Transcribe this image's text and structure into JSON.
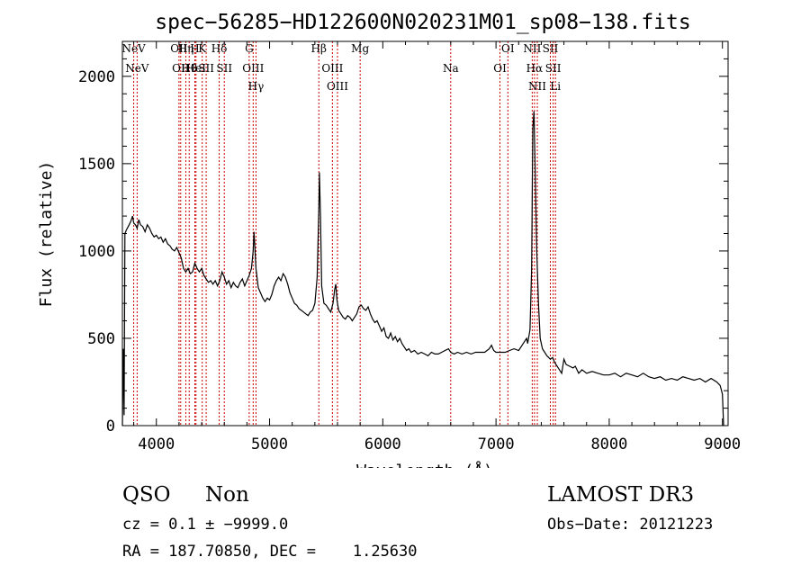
{
  "chart_data": {
    "type": "line",
    "title": "spec−56285−HD122600N020231M01_sp08−138.fits",
    "xlabel": "Wavelength (Å)",
    "ylabel": "Flux (relative)",
    "xlim": [
      3700,
      9050
    ],
    "ylim": [
      0,
      2200
    ],
    "xticks": [
      4000,
      5000,
      6000,
      7000,
      8000,
      9000
    ],
    "yticks": [
      0,
      500,
      1000,
      1500,
      2000
    ],
    "grid": false,
    "series": [
      {
        "color": "#000000",
        "points": [
          [
            3700,
            0
          ],
          [
            3708,
            440
          ],
          [
            3715,
            60
          ],
          [
            3722,
            1100
          ],
          [
            3735,
            1120
          ],
          [
            3760,
            1150
          ],
          [
            3775,
            1170
          ],
          [
            3790,
            1200
          ],
          [
            3800,
            1160
          ],
          [
            3815,
            1150
          ],
          [
            3830,
            1130
          ],
          [
            3845,
            1180
          ],
          [
            3860,
            1150
          ],
          [
            3880,
            1140
          ],
          [
            3900,
            1110
          ],
          [
            3920,
            1150
          ],
          [
            3940,
            1130
          ],
          [
            3960,
            1100
          ],
          [
            3980,
            1080
          ],
          [
            4000,
            1090
          ],
          [
            4020,
            1070
          ],
          [
            4040,
            1080
          ],
          [
            4060,
            1050
          ],
          [
            4080,
            1070
          ],
          [
            4100,
            1040
          ],
          [
            4120,
            1030
          ],
          [
            4140,
            1010
          ],
          [
            4160,
            1000
          ],
          [
            4180,
            1020
          ],
          [
            4200,
            990
          ],
          [
            4220,
            960
          ],
          [
            4240,
            900
          ],
          [
            4260,
            880
          ],
          [
            4280,
            900
          ],
          [
            4300,
            870
          ],
          [
            4320,
            880
          ],
          [
            4340,
            930
          ],
          [
            4360,
            900
          ],
          [
            4380,
            880
          ],
          [
            4400,
            900
          ],
          [
            4420,
            860
          ],
          [
            4440,
            840
          ],
          [
            4460,
            820
          ],
          [
            4480,
            830
          ],
          [
            4500,
            810
          ],
          [
            4520,
            830
          ],
          [
            4540,
            800
          ],
          [
            4560,
            830
          ],
          [
            4580,
            880
          ],
          [
            4600,
            850
          ],
          [
            4620,
            810
          ],
          [
            4640,
            830
          ],
          [
            4660,
            790
          ],
          [
            4680,
            820
          ],
          [
            4700,
            800
          ],
          [
            4720,
            790
          ],
          [
            4740,
            820
          ],
          [
            4760,
            840
          ],
          [
            4780,
            800
          ],
          [
            4800,
            830
          ],
          [
            4820,
            860
          ],
          [
            4840,
            900
          ],
          [
            4855,
            1000
          ],
          [
            4862,
            1110
          ],
          [
            4870,
            1020
          ],
          [
            4880,
            900
          ],
          [
            4900,
            790
          ],
          [
            4920,
            760
          ],
          [
            4940,
            730
          ],
          [
            4960,
            710
          ],
          [
            4980,
            730
          ],
          [
            5000,
            720
          ],
          [
            5020,
            750
          ],
          [
            5040,
            800
          ],
          [
            5060,
            830
          ],
          [
            5080,
            850
          ],
          [
            5100,
            830
          ],
          [
            5120,
            870
          ],
          [
            5140,
            850
          ],
          [
            5160,
            810
          ],
          [
            5180,
            760
          ],
          [
            5200,
            730
          ],
          [
            5220,
            700
          ],
          [
            5240,
            690
          ],
          [
            5260,
            670
          ],
          [
            5280,
            660
          ],
          [
            5300,
            650
          ],
          [
            5320,
            640
          ],
          [
            5340,
            630
          ],
          [
            5360,
            650
          ],
          [
            5380,
            660
          ],
          [
            5400,
            700
          ],
          [
            5420,
            850
          ],
          [
            5435,
            1250
          ],
          [
            5440,
            1450
          ],
          [
            5450,
            1200
          ],
          [
            5460,
            800
          ],
          [
            5480,
            700
          ],
          [
            5500,
            690
          ],
          [
            5520,
            670
          ],
          [
            5540,
            650
          ],
          [
            5560,
            700
          ],
          [
            5575,
            780
          ],
          [
            5585,
            810
          ],
          [
            5595,
            720
          ],
          [
            5610,
            660
          ],
          [
            5630,
            640
          ],
          [
            5650,
            620
          ],
          [
            5670,
            610
          ],
          [
            5690,
            630
          ],
          [
            5710,
            620
          ],
          [
            5730,
            600
          ],
          [
            5750,
            620
          ],
          [
            5770,
            640
          ],
          [
            5790,
            680
          ],
          [
            5810,
            690
          ],
          [
            5830,
            670
          ],
          [
            5850,
            660
          ],
          [
            5870,
            680
          ],
          [
            5890,
            640
          ],
          [
            5910,
            610
          ],
          [
            5930,
            590
          ],
          [
            5950,
            600
          ],
          [
            5970,
            570
          ],
          [
            5990,
            540
          ],
          [
            6010,
            560
          ],
          [
            6030,
            510
          ],
          [
            6050,
            500
          ],
          [
            6070,
            530
          ],
          [
            6090,
            490
          ],
          [
            6110,
            510
          ],
          [
            6130,
            480
          ],
          [
            6150,
            500
          ],
          [
            6170,
            470
          ],
          [
            6190,
            450
          ],
          [
            6210,
            430
          ],
          [
            6230,
            440
          ],
          [
            6250,
            420
          ],
          [
            6280,
            430
          ],
          [
            6310,
            410
          ],
          [
            6340,
            420
          ],
          [
            6370,
            410
          ],
          [
            6400,
            400
          ],
          [
            6430,
            420
          ],
          [
            6460,
            410
          ],
          [
            6490,
            410
          ],
          [
            6520,
            420
          ],
          [
            6550,
            430
          ],
          [
            6580,
            440
          ],
          [
            6600,
            420
          ],
          [
            6630,
            410
          ],
          [
            6660,
            420
          ],
          [
            6700,
            410
          ],
          [
            6740,
            420
          ],
          [
            6780,
            410
          ],
          [
            6820,
            420
          ],
          [
            6860,
            420
          ],
          [
            6900,
            420
          ],
          [
            6940,
            440
          ],
          [
            6960,
            460
          ],
          [
            6980,
            430
          ],
          [
            7000,
            420
          ],
          [
            7040,
            420
          ],
          [
            7080,
            420
          ],
          [
            7120,
            430
          ],
          [
            7160,
            440
          ],
          [
            7200,
            430
          ],
          [
            7230,
            460
          ],
          [
            7250,
            480
          ],
          [
            7270,
            500
          ],
          [
            7280,
            470
          ],
          [
            7300,
            550
          ],
          [
            7315,
            900
          ],
          [
            7325,
            1700
          ],
          [
            7335,
            1800
          ],
          [
            7345,
            1500
          ],
          [
            7360,
            1000
          ],
          [
            7375,
            700
          ],
          [
            7390,
            500
          ],
          [
            7410,
            440
          ],
          [
            7430,
            420
          ],
          [
            7450,
            400
          ],
          [
            7480,
            380
          ],
          [
            7500,
            390
          ],
          [
            7520,
            360
          ],
          [
            7550,
            330
          ],
          [
            7580,
            300
          ],
          [
            7600,
            380
          ],
          [
            7620,
            350
          ],
          [
            7650,
            340
          ],
          [
            7680,
            330
          ],
          [
            7700,
            340
          ],
          [
            7730,
            300
          ],
          [
            7760,
            320
          ],
          [
            7800,
            300
          ],
          [
            7850,
            310
          ],
          [
            7900,
            300
          ],
          [
            7950,
            290
          ],
          [
            8000,
            290
          ],
          [
            8050,
            300
          ],
          [
            8100,
            280
          ],
          [
            8150,
            300
          ],
          [
            8200,
            290
          ],
          [
            8250,
            280
          ],
          [
            8300,
            300
          ],
          [
            8350,
            280
          ],
          [
            8400,
            270
          ],
          [
            8450,
            280
          ],
          [
            8500,
            260
          ],
          [
            8550,
            270
          ],
          [
            8600,
            260
          ],
          [
            8650,
            280
          ],
          [
            8700,
            270
          ],
          [
            8750,
            260
          ],
          [
            8800,
            270
          ],
          [
            8850,
            250
          ],
          [
            8900,
            270
          ],
          [
            8950,
            250
          ],
          [
            8980,
            230
          ],
          [
            9000,
            180
          ],
          [
            9010,
            0
          ]
        ]
      }
    ],
    "lines": [
      {
        "x": 3800,
        "row": 0,
        "label": "NeV"
      },
      {
        "x": 3830,
        "row": 1,
        "label": "NeV"
      },
      {
        "x": 4200,
        "row": 0,
        "label": "OII"
      },
      {
        "x": 4215,
        "row": 1,
        "label": "OII"
      },
      {
        "x": 4260,
        "row": 0,
        "label": "Hη"
      },
      {
        "x": 4290,
        "row": 1,
        "label": "Hθ"
      },
      {
        "x": 4340,
        "row": 0,
        "label": "H"
      },
      {
        "x": 4350,
        "row": 1,
        "label": "HeI"
      },
      {
        "x": 4405,
        "row": 0,
        "label": "K"
      },
      {
        "x": 4440,
        "row": 1,
        "label": "SII"
      },
      {
        "x": 4555,
        "row": 0,
        "label": "Hδ"
      },
      {
        "x": 4600,
        "row": 1,
        "label": "SII"
      },
      {
        "x": 4820,
        "row": 0,
        "label": "G"
      },
      {
        "x": 4855,
        "row": 1,
        "label": "OIII"
      },
      {
        "x": 4880,
        "row": 2,
        "label": "Hγ"
      },
      {
        "x": 5435,
        "row": 0,
        "label": "Hβ"
      },
      {
        "x": 5555,
        "row": 1,
        "label": "OIII"
      },
      {
        "x": 5600,
        "row": 2,
        "label": "OIII"
      },
      {
        "x": 5800,
        "row": 0,
        "label": "Mg"
      },
      {
        "x": 6600,
        "row": 1,
        "label": "Na"
      },
      {
        "x": 7035,
        "row": 1,
        "label": "OI"
      },
      {
        "x": 7105,
        "row": 0,
        "label": "OI"
      },
      {
        "x": 7320,
        "row": 0,
        "label": "NII"
      },
      {
        "x": 7340,
        "row": 1,
        "label": "Hα"
      },
      {
        "x": 7365,
        "row": 2,
        "label": "NII"
      },
      {
        "x": 7480,
        "row": 0,
        "label": "SII"
      },
      {
        "x": 7505,
        "row": 1,
        "label": "SII"
      },
      {
        "x": 7525,
        "row": 2,
        "label": "Li"
      }
    ],
    "line_color": "#cc0000"
  },
  "info": {
    "class": "QSO",
    "subclass": "Non",
    "survey": "LAMOST DR3",
    "cz": "cz = 0.1 ± −9999.0",
    "obs_date": "Obs−Date: 20121223",
    "coords": "RA = 187.70850, DEC =    1.25630"
  }
}
